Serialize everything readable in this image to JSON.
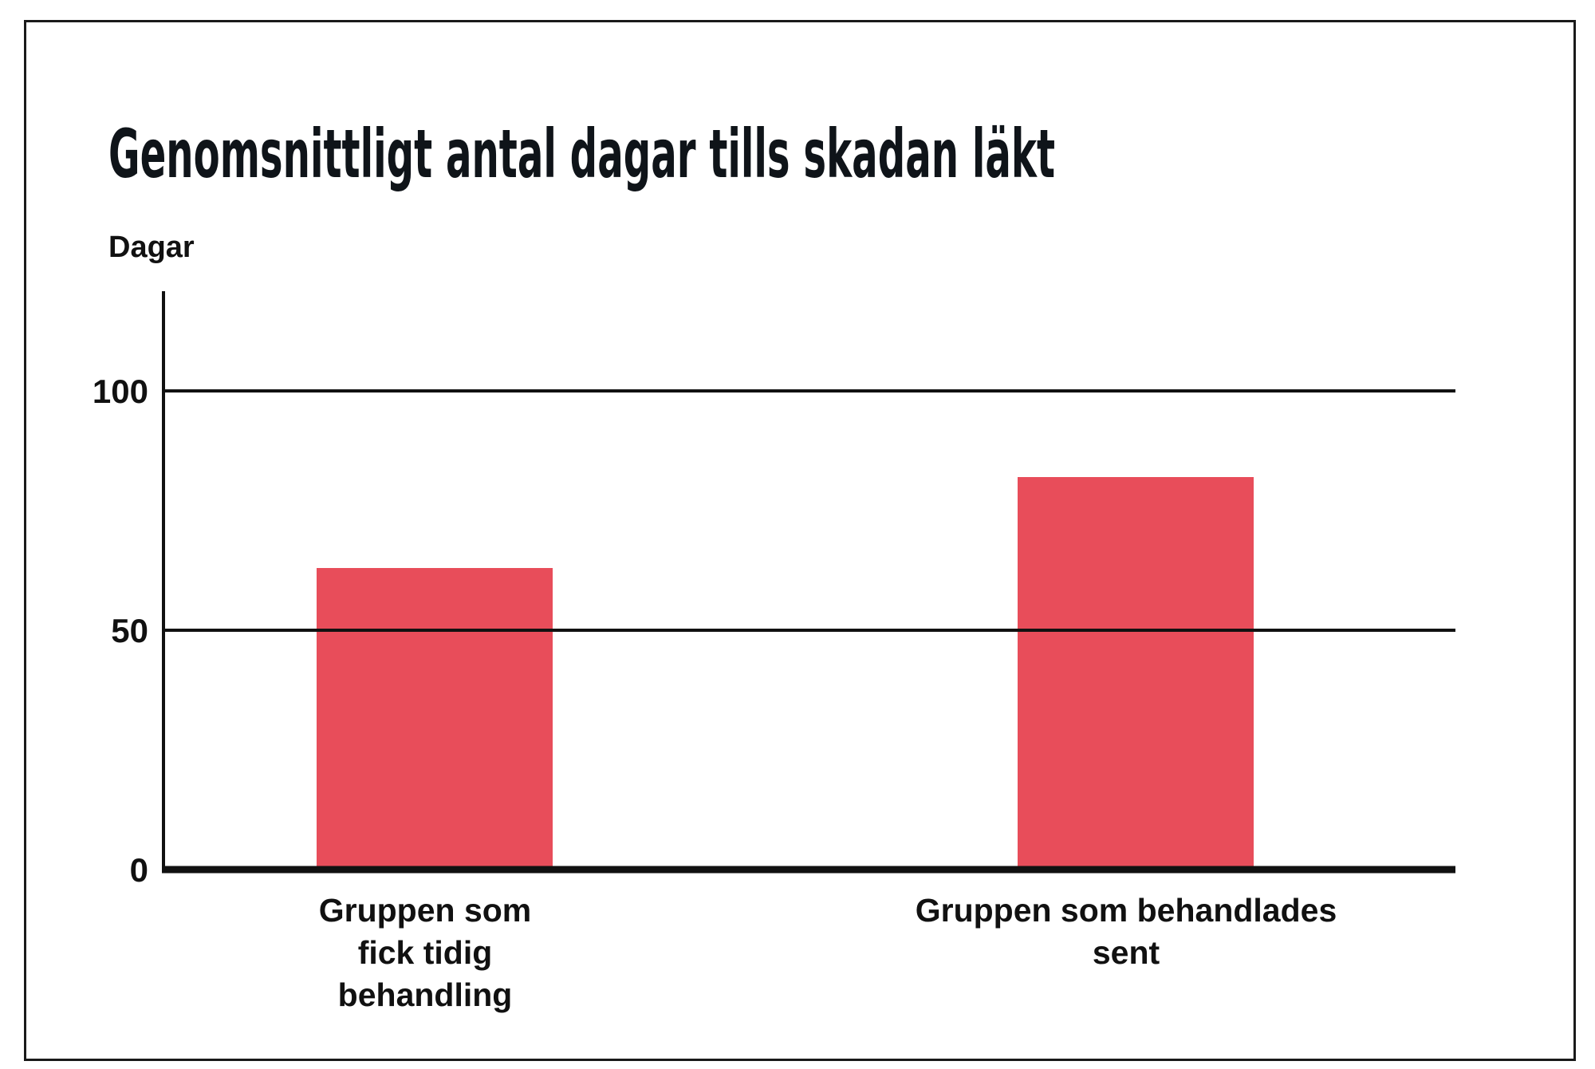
{
  "chart_data": {
    "type": "bar",
    "title": "Genomsnittligt antal dagar tills skadan läkt",
    "xlabel": "",
    "ylabel": "Dagar",
    "categories": [
      [
        "Gruppen som",
        "fick tidig",
        "behandling"
      ],
      [
        "Gruppen som behandlades",
        "sent"
      ]
    ],
    "values": [
      63,
      82
    ],
    "ylim": [
      0,
      120
    ],
    "yticks": [
      "0",
      "50",
      "100"
    ],
    "ytick_values": [
      0,
      50,
      100
    ],
    "grid": true,
    "legend": "none",
    "bar_color": "#e84d5a"
  }
}
